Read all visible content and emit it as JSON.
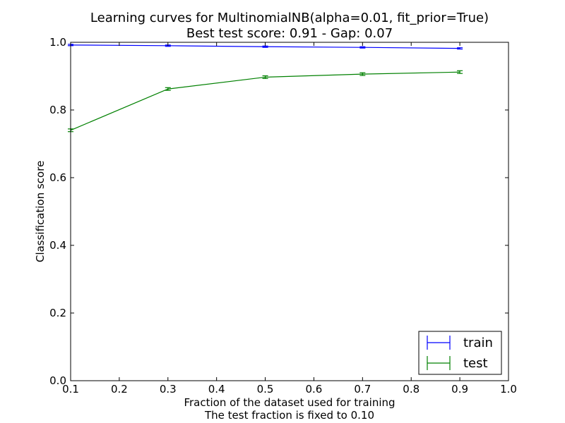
{
  "chart_data": {
    "type": "line",
    "title": "Learning curves for MultinomialNB(alpha=0.01, fit_prior=True)",
    "subtitle": "Best test score: 0.91 - Gap: 0.07",
    "xlabel": "Fraction of the dataset used for training",
    "xlabel2": "The test fraction is fixed to 0.10",
    "ylabel": "Classification score",
    "xlim": [
      0.1,
      1.0
    ],
    "ylim": [
      0.0,
      1.0
    ],
    "xticks": [
      0.1,
      0.2,
      0.3,
      0.4,
      0.5,
      0.6,
      0.7,
      0.8,
      0.9,
      1.0
    ],
    "xtick_labels": [
      "0.1",
      "0.2",
      "0.3",
      "0.4",
      "0.5",
      "0.6",
      "0.7",
      "0.8",
      "0.9",
      "1.0"
    ],
    "yticks": [
      0.0,
      0.2,
      0.4,
      0.6,
      0.8,
      1.0
    ],
    "ytick_labels": [
      "0.0",
      "0.2",
      "0.4",
      "0.6",
      "0.8",
      "1.0"
    ],
    "grid": false,
    "legend_position": "bottom-right",
    "x": [
      0.1,
      0.3,
      0.5,
      0.7,
      0.9
    ],
    "series": [
      {
        "name": "train",
        "color": "#0000ff",
        "values": [
          0.992,
          0.99,
          0.987,
          0.985,
          0.982
        ],
        "errors": [
          0.002,
          0.002,
          0.002,
          0.002,
          0.002
        ]
      },
      {
        "name": "test",
        "color": "#008000",
        "values": [
          0.74,
          0.862,
          0.897,
          0.906,
          0.912
        ],
        "errors": [
          0.004,
          0.004,
          0.004,
          0.004,
          0.004
        ]
      }
    ]
  }
}
